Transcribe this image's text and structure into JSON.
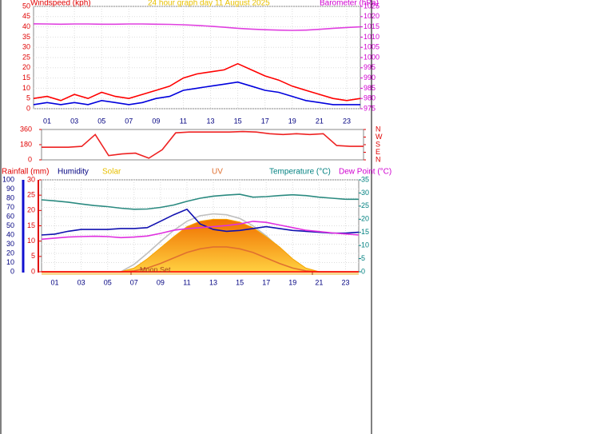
{
  "chart_data": [
    {
      "type": "line",
      "title": "24 hour graph day  11 August 2025",
      "x": [
        0,
        1,
        2,
        3,
        4,
        5,
        6,
        7,
        8,
        9,
        10,
        11,
        12,
        13,
        14,
        15,
        16,
        17,
        18,
        19,
        20,
        21,
        22,
        23,
        24
      ],
      "xlim": [
        0,
        24
      ],
      "xticks": [
        {
          "value": 1,
          "label": "01"
        },
        {
          "value": 3,
          "label": "03"
        },
        {
          "value": 5,
          "label": "05"
        },
        {
          "value": 7,
          "label": "07"
        },
        {
          "value": 9,
          "label": "09"
        },
        {
          "value": 11,
          "label": "11"
        },
        {
          "value": 13,
          "label": "13"
        },
        {
          "value": 15,
          "label": "15"
        },
        {
          "value": 17,
          "label": "17"
        },
        {
          "value": 19,
          "label": "19"
        },
        {
          "value": 21,
          "label": "21"
        },
        {
          "value": 23,
          "label": "23"
        }
      ],
      "ylim": [
        0,
        50
      ],
      "yticks": [
        0,
        5,
        10,
        15,
        20,
        25,
        30,
        35,
        40,
        45,
        50
      ],
      "y2lim": [
        975,
        1025
      ],
      "y2ticks": [
        975,
        980,
        985,
        990,
        995,
        1000,
        1005,
        1010,
        1015,
        1020,
        1025
      ],
      "grid": true,
      "series": [
        {
          "name": "Windspeed (kph)",
          "color": "#ff0000",
          "values": [
            5,
            6,
            4,
            7,
            5,
            8,
            6,
            5,
            7,
            9,
            11,
            15,
            17,
            18,
            19,
            22,
            19,
            16,
            14,
            11,
            9,
            7,
            5,
            4,
            5
          ]
        },
        {
          "color": "#0000dd",
          "values": [
            2,
            3,
            2,
            3,
            2,
            4,
            3,
            2,
            3,
            5,
            6,
            9,
            10,
            11,
            12,
            13,
            11,
            9,
            8,
            6,
            4,
            3,
            2,
            2,
            2
          ]
        },
        {
          "name": "Barometer (hPa)",
          "color": "#e040e0",
          "axis": "y2",
          "values": [
            1016.5,
            1016.4,
            1016.3,
            1016.4,
            1016.4,
            1016.3,
            1016.3,
            1016.4,
            1016.4,
            1016.3,
            1016.2,
            1016.0,
            1015.7,
            1015.3,
            1014.8,
            1014.3,
            1013.9,
            1013.6,
            1013.4,
            1013.3,
            1013.4,
            1013.8,
            1014.3,
            1014.7,
            1015.0
          ]
        }
      ]
    },
    {
      "type": "line",
      "x": [
        0,
        1,
        2,
        3,
        4,
        5,
        6,
        7,
        8,
        9,
        10,
        11,
        12,
        13,
        14,
        15,
        16,
        17,
        18,
        19,
        20,
        21,
        22,
        23,
        24
      ],
      "xlim": [
        0,
        24
      ],
      "ylim": [
        0,
        360
      ],
      "yticks": [
        0,
        180,
        360
      ],
      "y2lim": [
        0,
        360
      ],
      "y2ticks": [
        {
          "value": 360,
          "label": "N"
        },
        {
          "value": 270,
          "label": "W"
        },
        {
          "value": 180,
          "label": "S"
        },
        {
          "value": 90,
          "label": "E"
        },
        {
          "value": 0,
          "label": "N"
        }
      ],
      "series": [
        {
          "color": "#ee2222",
          "values": [
            150,
            150,
            150,
            160,
            300,
            50,
            70,
            80,
            20,
            120,
            320,
            330,
            330,
            330,
            330,
            335,
            330,
            310,
            300,
            310,
            300,
            310,
            170,
            160,
            160
          ]
        }
      ]
    },
    {
      "type": "line",
      "x": [
        0,
        1,
        2,
        3,
        4,
        5,
        6,
        7,
        8,
        9,
        10,
        11,
        12,
        13,
        14,
        15,
        16,
        17,
        18,
        19,
        20,
        21,
        22,
        23,
        24
      ],
      "xlim": [
        0,
        24
      ],
      "xticks": [
        {
          "value": 1,
          "label": "01"
        },
        {
          "value": 3,
          "label": "03"
        },
        {
          "value": 5,
          "label": "05"
        },
        {
          "value": 7,
          "label": "07"
        },
        {
          "value": 9,
          "label": "09"
        },
        {
          "value": 11,
          "label": "11"
        },
        {
          "value": 13,
          "label": "13"
        },
        {
          "value": 15,
          "label": "15"
        },
        {
          "value": 17,
          "label": "17"
        },
        {
          "value": 19,
          "label": "19"
        },
        {
          "value": 21,
          "label": "21"
        },
        {
          "value": 23,
          "label": "23"
        }
      ],
      "ylim": [
        0,
        100
      ],
      "yticks": [
        0,
        10,
        20,
        30,
        40,
        50,
        60,
        70,
        80,
        90,
        100
      ],
      "y3lim": [
        0,
        30
      ],
      "y3ticks": [
        0,
        5,
        10,
        15,
        20,
        25,
        30
      ],
      "y2lim": [
        0,
        35
      ],
      "y2ticks": [
        0,
        5,
        10,
        15,
        20,
        25,
        30,
        35
      ],
      "grid": true,
      "annotations": [
        "Moon Set"
      ],
      "series": [
        {
          "color": "#c0c0c0",
          "values": [
            0,
            0,
            0,
            0,
            0,
            0,
            0,
            8,
            20,
            33,
            45,
            55,
            61,
            63,
            62,
            58,
            50,
            39,
            26,
            13,
            2,
            0,
            0,
            0,
            0
          ]
        },
        {
          "name": "Solar",
          "color": "#f5a500",
          "fill": true,
          "values": [
            0,
            0,
            0,
            0,
            0,
            0,
            0,
            4,
            14,
            26,
            38,
            49,
            55,
            57,
            57,
            54,
            48,
            38,
            27,
            14,
            4,
            0,
            0,
            0,
            0
          ]
        },
        {
          "name": "UV",
          "color": "#e07030",
          "values": [
            0,
            0,
            0,
            0,
            0,
            0,
            0,
            1,
            4,
            9,
            15,
            21,
            25,
            27,
            27,
            25,
            21,
            15,
            9,
            4,
            1,
            0,
            0,
            0,
            0
          ]
        },
        {
          "name": "Rainfall (mm)",
          "color": "#ff0000",
          "axis": "y3",
          "values": [
            0,
            0,
            0,
            0,
            0,
            0,
            0,
            0,
            0,
            0,
            0,
            0,
            0,
            0,
            0,
            0,
            0,
            0,
            0,
            0,
            0,
            0,
            0,
            0,
            0
          ]
        },
        {
          "name": "Humidity",
          "color": "#1010b0",
          "values": [
            40,
            41,
            44,
            46,
            46,
            46,
            47,
            47,
            48,
            55,
            62,
            68,
            52,
            46,
            44,
            45,
            47,
            49,
            47,
            45,
            44,
            43,
            42,
            42,
            43
          ]
        },
        {
          "name": "Temperature (°C)",
          "color": "#2a8a80",
          "axis": "y2",
          "values": [
            27.4,
            27,
            26.5,
            25.8,
            25.2,
            24.8,
            24.2,
            23.8,
            23.9,
            24.5,
            25.4,
            26.8,
            28,
            28.8,
            29.2,
            29.5,
            28.4,
            28.6,
            29,
            29.3,
            29,
            28.4,
            28,
            27.6,
            27.6
          ]
        },
        {
          "name": "Dew Point (°C)",
          "color": "#e030e0",
          "axis": "y2",
          "values": [
            12.4,
            12.8,
            13.2,
            13.4,
            13.5,
            13.4,
            13.0,
            13.2,
            13.6,
            14.6,
            15.8,
            16.4,
            16.8,
            17.2,
            17.6,
            18.2,
            19.2,
            18.8,
            17.8,
            16.8,
            15.8,
            15.3,
            14.8,
            14.4,
            14
          ]
        }
      ]
    }
  ]
}
